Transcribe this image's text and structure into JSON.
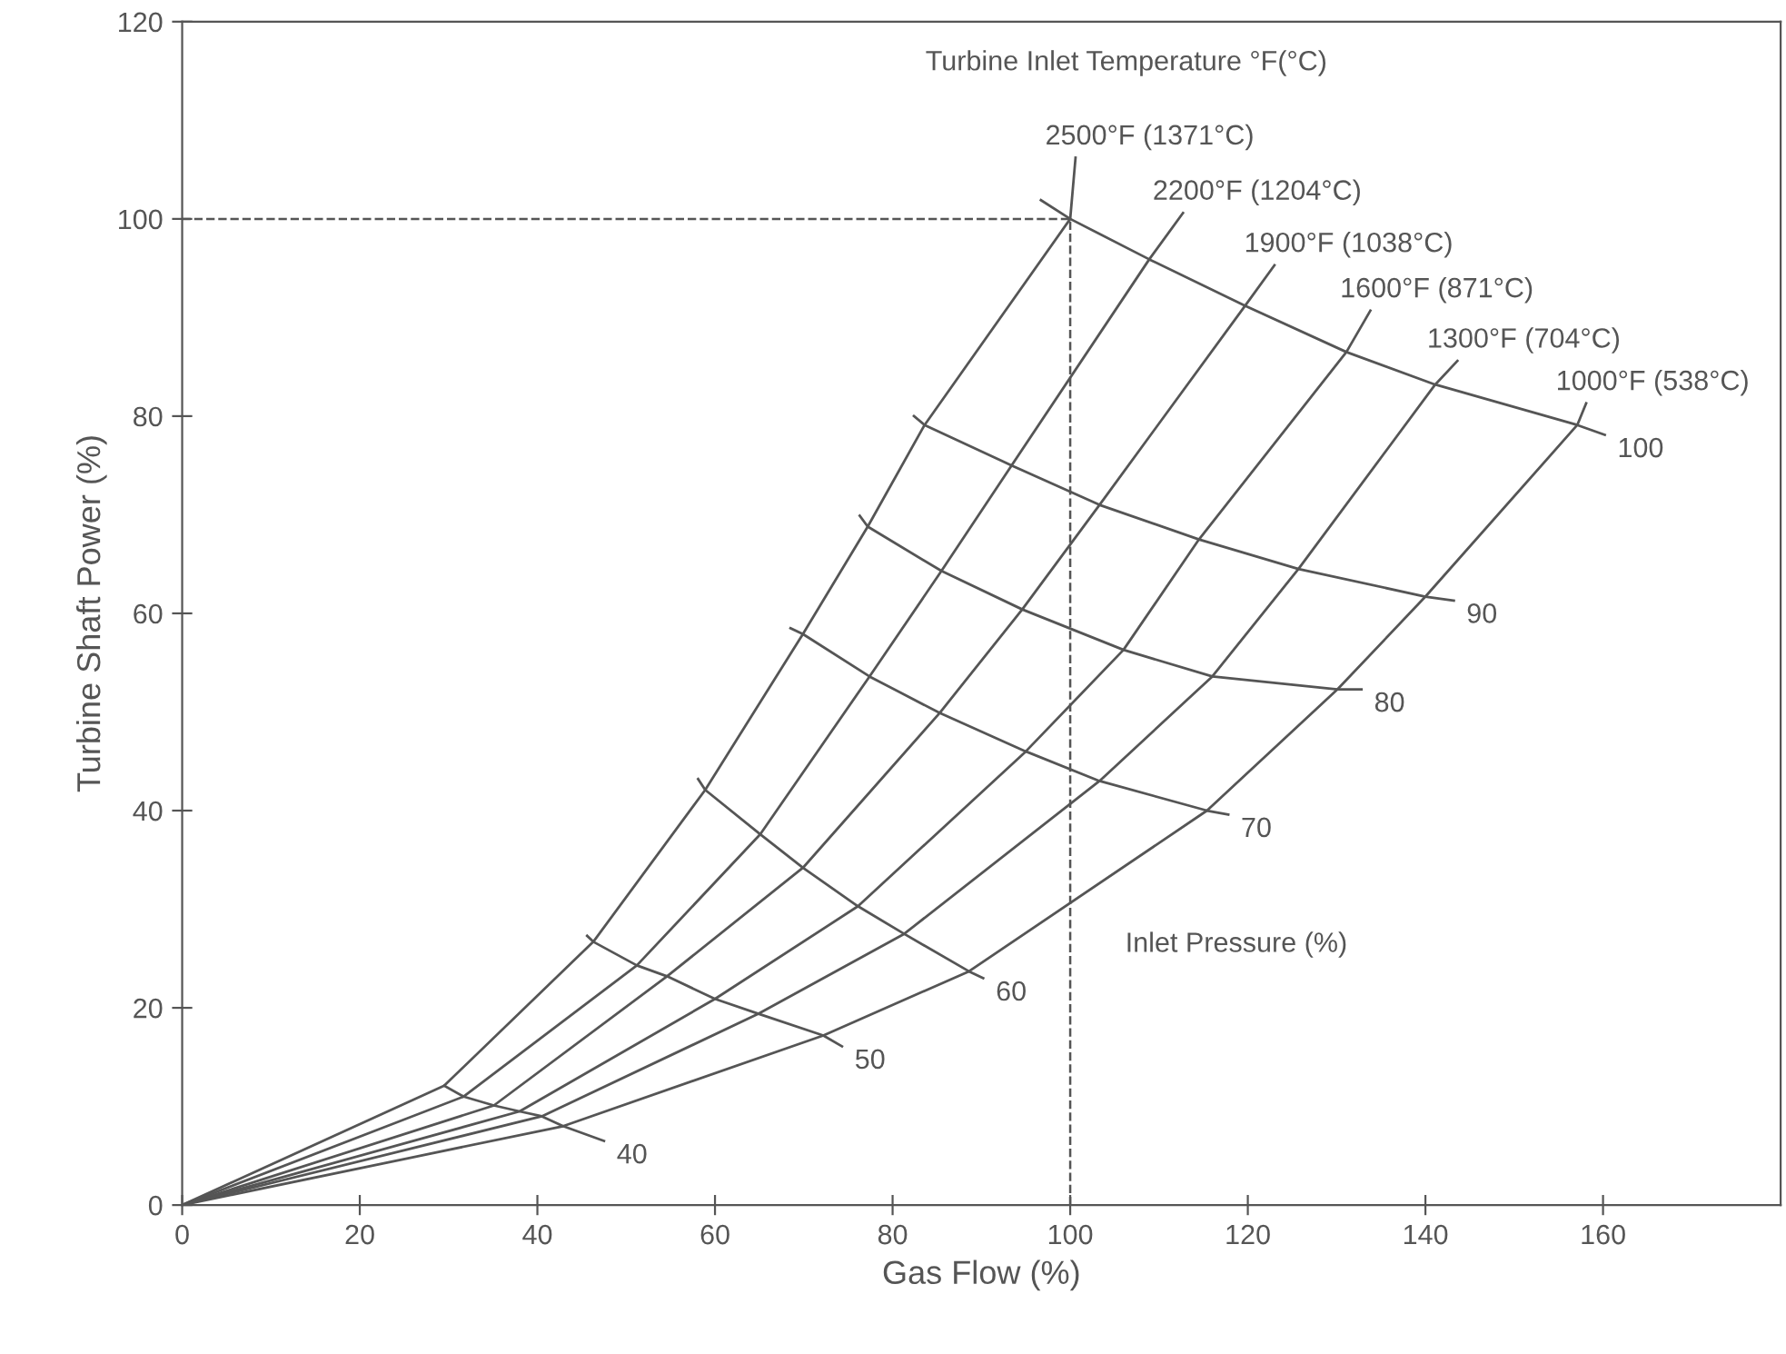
{
  "chart_data": {
    "type": "line",
    "xlabel": "Gas Flow (%)",
    "ylabel": "Turbine Shaft Power (%)",
    "xlim": [
      0,
      180
    ],
    "ylim": [
      0,
      120
    ],
    "xticks": [
      0,
      20,
      40,
      60,
      80,
      100,
      120,
      140,
      160
    ],
    "yticks": [
      0,
      20,
      40,
      60,
      80,
      100,
      120
    ],
    "grid": false,
    "legend": false,
    "marker": "none",
    "annotations": [
      "Turbine Inlet Temperature °F(°C)",
      "Inlet Pressure (%)"
    ],
    "series": [
      {
        "name": "2500°F (1371°C)",
        "color": "#555555",
        "x": [
          0,
          29.5,
          46.3,
          58.9,
          69.9,
          77.2,
          83.6,
          100,
          100.6
        ],
        "values": [
          0,
          12.1,
          26.7,
          42.1,
          57.9,
          68.8,
          79.1,
          100,
          106.2
        ]
      },
      {
        "name": "2200°F (1204°C)",
        "color": "#555555",
        "x": [
          0,
          31.7,
          51.2,
          65.1,
          77.4,
          85.5,
          93.4,
          108.9,
          112.7
        ],
        "values": [
          0,
          11.0,
          24.3,
          37.6,
          53.6,
          64.3,
          75.0,
          95.9,
          100.6
        ]
      },
      {
        "name": "1900°F (1038°C)",
        "color": "#555555",
        "x": [
          0,
          35.1,
          54.6,
          69.9,
          85.3,
          94.6,
          103.3,
          119.7,
          123.0
        ],
        "values": [
          0,
          10.1,
          23.2,
          34.2,
          49.9,
          60.4,
          71.0,
          91.2,
          95.3
        ]
      },
      {
        "name": "1600°F (871°C)",
        "color": "#555555",
        "x": [
          0,
          38.0,
          60.0,
          76.1,
          95.0,
          106.0,
          114.5,
          131.1,
          133.8
        ],
        "values": [
          0,
          9.5,
          20.9,
          30.3,
          46.0,
          56.3,
          67.5,
          86.5,
          90.7
        ]
      },
      {
        "name": "1300°F (704°C)",
        "color": "#555555",
        "x": [
          0,
          40.5,
          64.9,
          81.3,
          103.3,
          116.0,
          125.7,
          141.1,
          143.6
        ],
        "values": [
          0,
          9.0,
          19.4,
          27.5,
          43.0,
          53.6,
          64.5,
          83.2,
          85.6
        ]
      },
      {
        "name": "1000°F (538°C)",
        "color": "#555555",
        "x": [
          0,
          42.9,
          72.2,
          88.6,
          115.4,
          130.1,
          140.0,
          157.1,
          158.1
        ],
        "values": [
          0,
          8.0,
          17.2,
          23.7,
          40.0,
          52.3,
          61.7,
          79.1,
          81.3
        ]
      },
      {
        "name": "40",
        "color": "#555555",
        "x": [
          29.5,
          31.7,
          35.1,
          38.0,
          40.5,
          42.9,
          47.5
        ],
        "values": [
          12.1,
          11.0,
          10.1,
          9.5,
          9.0,
          8.0,
          6.5
        ]
      },
      {
        "name": "50",
        "color": "#555555",
        "x": [
          45.6,
          46.3,
          51.2,
          54.6,
          60.0,
          64.9,
          72.2,
          74.3
        ],
        "values": [
          27.3,
          26.7,
          24.3,
          23.2,
          20.9,
          19.4,
          17.2,
          16.1
        ]
      },
      {
        "name": "60",
        "color": "#555555",
        "x": [
          58.1,
          58.9,
          65.1,
          69.9,
          76.1,
          81.3,
          88.6,
          90.2
        ],
        "values": [
          43.2,
          42.1,
          37.6,
          34.2,
          30.3,
          27.5,
          23.7,
          23.0
        ]
      },
      {
        "name": "70",
        "color": "#555555",
        "x": [
          68.5,
          69.9,
          77.4,
          85.3,
          95.0,
          103.3,
          115.4,
          117.8
        ],
        "values": [
          58.5,
          57.9,
          53.6,
          49.9,
          46.0,
          43.0,
          40.0,
          39.6
        ]
      },
      {
        "name": "80",
        "color": "#555555",
        "x": [
          76.3,
          77.2,
          85.5,
          94.6,
          106.0,
          116.0,
          130.1,
          132.8
        ],
        "values": [
          69.9,
          68.8,
          64.3,
          60.4,
          56.3,
          53.6,
          52.3,
          52.3
        ]
      },
      {
        "name": "90",
        "color": "#555555",
        "x": [
          82.4,
          83.6,
          93.4,
          103.3,
          114.5,
          125.7,
          140.0,
          143.2
        ],
        "values": [
          80.0,
          79.1,
          75.0,
          71.0,
          67.5,
          64.5,
          61.7,
          61.3
        ]
      },
      {
        "name": "100",
        "color": "#555555",
        "x": [
          96.7,
          100,
          108.9,
          119.7,
          131.1,
          141.1,
          157.1,
          160.2
        ],
        "values": [
          101.9,
          100,
          95.9,
          91.2,
          86.5,
          83.2,
          79.1,
          78.1
        ]
      },
      {
        "color": "#555555",
        "line_style": "dashed",
        "x": [
          0,
          100,
          100
        ],
        "values": [
          100,
          100,
          0
        ]
      }
    ]
  }
}
